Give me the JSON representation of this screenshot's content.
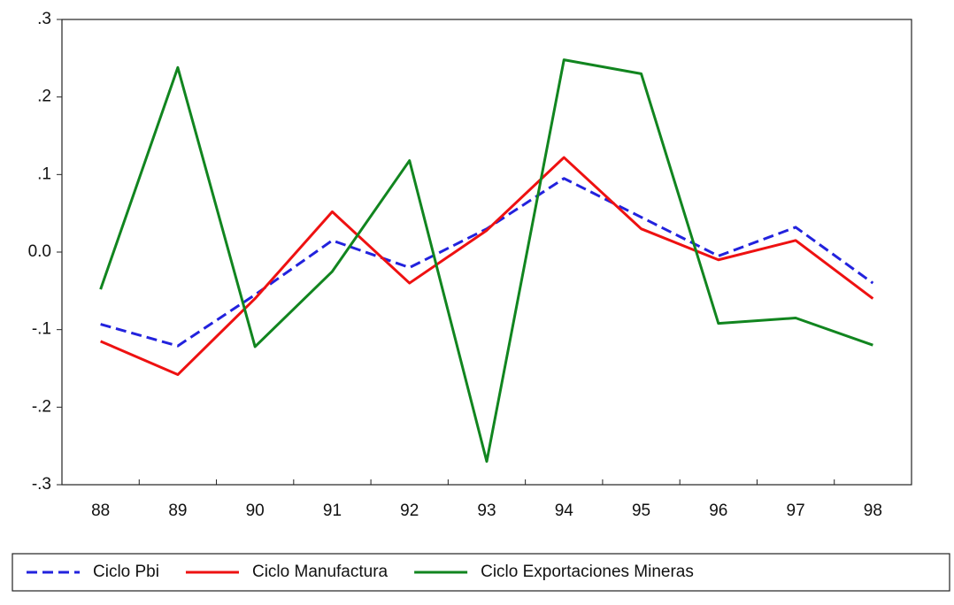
{
  "chart_data": {
    "type": "line",
    "categories": [
      "88",
      "89",
      "90",
      "91",
      "92",
      "93",
      "94",
      "95",
      "96",
      "97",
      "98"
    ],
    "series": [
      {
        "name": "Ciclo Pbi",
        "color": "#2222dd",
        "dash": true,
        "values": [
          -0.093,
          -0.121,
          -0.055,
          0.015,
          -0.02,
          0.03,
          0.095,
          0.045,
          -0.005,
          0.032,
          -0.04
        ]
      },
      {
        "name": "Ciclo Manufactura",
        "color": "#ee1111",
        "dash": false,
        "values": [
          -0.115,
          -0.158,
          -0.06,
          0.052,
          -0.04,
          0.028,
          0.122,
          0.03,
          -0.01,
          0.015,
          -0.06
        ]
      },
      {
        "name": "Ciclo Exportaciones Mineras",
        "color": "#11851f",
        "dash": false,
        "values": [
          -0.048,
          0.238,
          -0.122,
          -0.025,
          0.118,
          -0.27,
          0.248,
          0.23,
          -0.092,
          -0.085,
          -0.12
        ]
      }
    ],
    "ylim": [
      -0.3,
      0.3
    ],
    "yticks": [
      {
        "value": -0.3,
        "label": "-.3"
      },
      {
        "value": -0.2,
        "label": "-.2"
      },
      {
        "value": -0.1,
        "label": "-.1"
      },
      {
        "value": 0,
        "label": "0.0"
      },
      {
        "value": 0.1,
        "label": ".1"
      },
      {
        "value": 0.2,
        "label": ".2"
      },
      {
        "value": 0.3,
        "label": ".3"
      }
    ],
    "legend": "bottom"
  }
}
